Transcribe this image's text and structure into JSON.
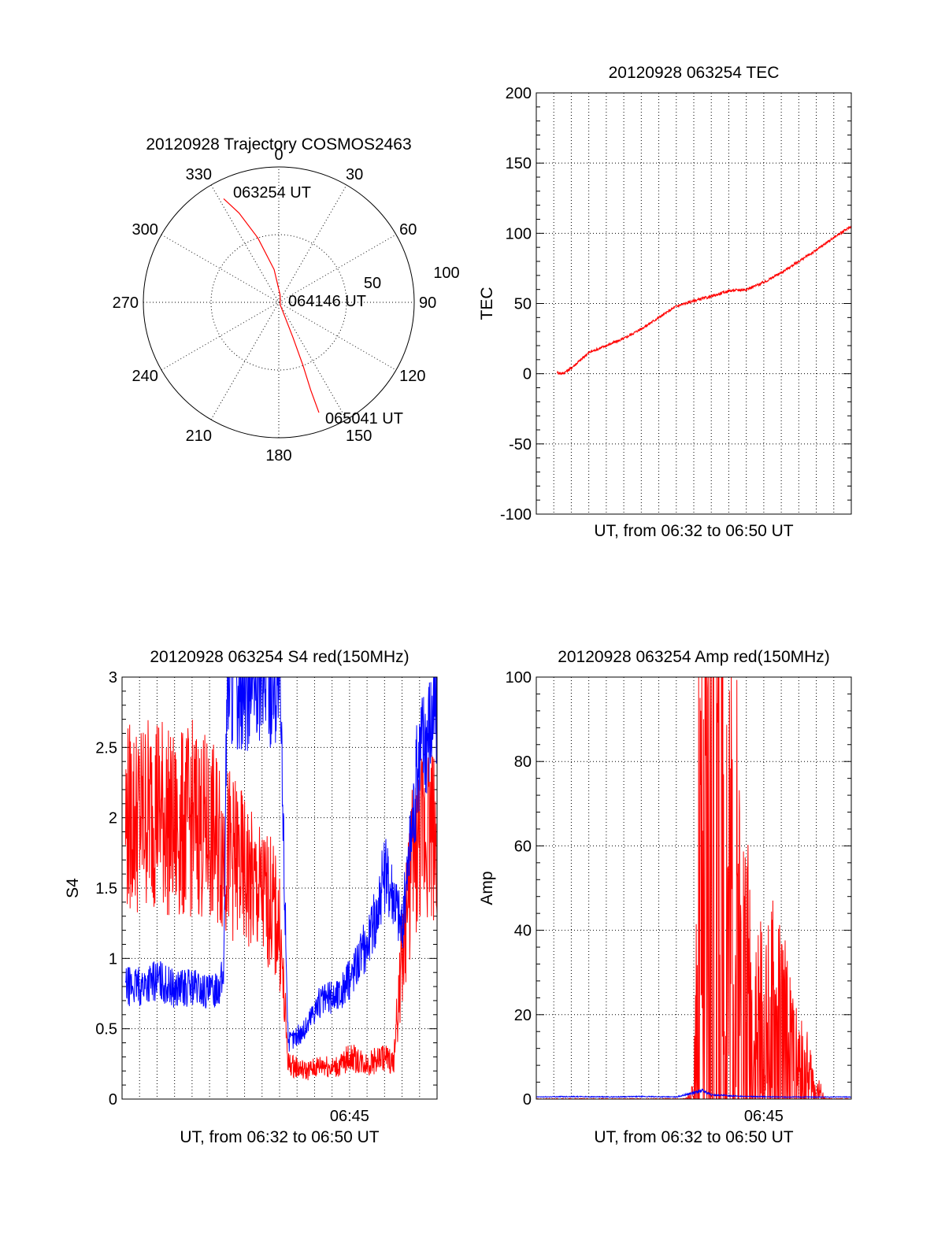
{
  "chart_data": [
    {
      "type": "polar",
      "title": "20120928 Trajectory COSMOS2463",
      "angle_labels": [
        "0",
        "30",
        "60",
        "90",
        "120",
        "150",
        "180",
        "210",
        "240",
        "270",
        "300",
        "330"
      ],
      "radius_labels": [
        "50",
        "100"
      ],
      "trajectory": {
        "color": "#ff0000",
        "start_label": "063254 UT",
        "mid_label": "064146 UT",
        "end_label": "065041 UT",
        "points": [
          {
            "az": 332,
            "el": 12
          },
          {
            "az": 336,
            "el": 25
          },
          {
            "az": 342,
            "el": 45
          },
          {
            "az": 352,
            "el": 68
          },
          {
            "az": 10,
            "el": 85
          },
          {
            "az": 150,
            "el": 88
          },
          {
            "az": 158,
            "el": 65
          },
          {
            "az": 159,
            "el": 45
          },
          {
            "az": 160,
            "el": 28
          },
          {
            "az": 160,
            "el": 12
          }
        ]
      }
    },
    {
      "type": "line",
      "title": "20120928 063254 TEC",
      "ylabel": "TEC",
      "xlabel": "UT, from 06:32 to 06:50 UT",
      "ylim": [
        -100,
        200
      ],
      "yticks": [
        "-100",
        "-50",
        "0",
        "50",
        "100",
        "150",
        "200"
      ],
      "xlim": [
        0,
        18
      ],
      "xticks": [],
      "series": [
        {
          "color": "#ff0000",
          "x": [
            1.2,
            1.5,
            2.0,
            3.0,
            4.0,
            5.0,
            6.0,
            7.0,
            8.0,
            9.0,
            10.0,
            11.0,
            12.0,
            13.0,
            14.0,
            15.0,
            16.0,
            17.0,
            18.0
          ],
          "values": [
            1,
            0,
            4,
            15,
            20,
            25,
            32,
            40,
            48,
            52,
            55,
            59,
            60,
            65,
            72,
            80,
            88,
            97,
            105
          ]
        }
      ]
    },
    {
      "type": "line",
      "title": "20120928 063254 S4 red(150MHz)",
      "ylabel": "S4",
      "xlabel": "UT, from 06:32 to 06:50 UT",
      "ylim": [
        0,
        3
      ],
      "yticks": [
        "0",
        "0.5",
        "1",
        "1.5",
        "2",
        "2.5",
        "3"
      ],
      "xlim": [
        0,
        18
      ],
      "xticks": [
        "06:45"
      ],
      "xtick_values": [
        13
      ],
      "series": [
        {
          "color": "#ff0000",
          "x": [
            0.2,
            1.0,
            2.0,
            3.0,
            4.0,
            5.0,
            5.8,
            6.5,
            7.5,
            8.5,
            9.0,
            9.5,
            10.5,
            11.0,
            11.5,
            12.0,
            12.5,
            13.0,
            14.0,
            15.0,
            15.5,
            16.0,
            16.5,
            17.0,
            17.5,
            18.0
          ],
          "values": [
            2.0,
            2.0,
            2.1,
            1.9,
            2.0,
            1.9,
            1.8,
            1.7,
            1.5,
            1.4,
            1.2,
            0.25,
            0.2,
            0.22,
            0.25,
            0.22,
            0.24,
            0.3,
            0.25,
            0.3,
            0.25,
            1.0,
            1.6,
            1.8,
            2.0,
            1.8
          ]
        },
        {
          "color": "#0000ff",
          "x": [
            0.2,
            1.0,
            2.0,
            3.0,
            4.0,
            5.0,
            5.8,
            6.0,
            9.0,
            9.5,
            10.5,
            11.0,
            11.5,
            12.0,
            12.5,
            13.0,
            13.5,
            14.0,
            14.5,
            15.0,
            15.5,
            16.0,
            17.0,
            18.0
          ],
          "values": [
            0.8,
            0.8,
            0.85,
            0.78,
            0.8,
            0.75,
            0.85,
            3.0,
            3.0,
            0.4,
            0.5,
            0.65,
            0.7,
            0.72,
            0.75,
            0.85,
            1.0,
            1.1,
            1.3,
            1.6,
            1.5,
            1.2,
            2.5,
            2.8
          ]
        }
      ]
    },
    {
      "type": "line",
      "title": "20120928 063254 Amp red(150MHz)",
      "ylabel": "Amp",
      "xlabel": "UT, from 06:32 to 06:50 UT",
      "ylim": [
        0,
        100
      ],
      "yticks": [
        "0",
        "20",
        "40",
        "60",
        "80",
        "100"
      ],
      "xlim": [
        0,
        18
      ],
      "xticks": [
        "06:45"
      ],
      "xtick_values": [
        13
      ],
      "series": [
        {
          "color": "#ff0000",
          "x": [
            0,
            8.5,
            9.0,
            9.3,
            9.6,
            10.0,
            10.5,
            11.0,
            11.5,
            12.0,
            12.5,
            13.0,
            13.5,
            14.0,
            14.5,
            15.0,
            15.5,
            16.0,
            16.5,
            18.0
          ],
          "values": [
            0,
            0,
            1,
            30,
            25,
            50,
            45,
            35,
            25,
            18,
            12,
            10,
            12,
            11,
            8,
            5,
            4,
            2,
            0,
            0
          ]
        },
        {
          "color": "#0000ff",
          "x": [
            0,
            2,
            4,
            6,
            8,
            9,
            9.5,
            10,
            12,
            14,
            16,
            18
          ],
          "values": [
            0.5,
            0.6,
            0.5,
            0.6,
            0.5,
            1.5,
            2.0,
            1.0,
            0.6,
            0.5,
            0.5,
            0.5
          ]
        }
      ]
    }
  ]
}
